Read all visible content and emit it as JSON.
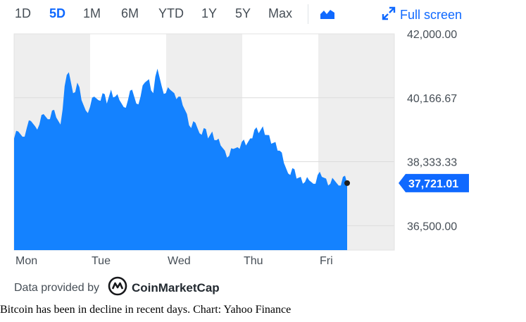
{
  "toolbar": {
    "ranges": [
      "1D",
      "5D",
      "1M",
      "6M",
      "YTD",
      "1Y",
      "5Y",
      "Max"
    ],
    "active_range": "5D",
    "chart_type_icon": "area-chart-icon",
    "fullscreen_icon": "expand-arrows-icon",
    "fullscreen_label": "Full screen",
    "accent_color": "#0f69ff"
  },
  "chart_data": {
    "type": "area",
    "title": "",
    "xlabel": "",
    "ylabel": "",
    "x_ticks": [
      "Mon",
      "Tue",
      "Wed",
      "Thu",
      "Fri"
    ],
    "y_ticks": [
      "42,000.00",
      "40,166.67",
      "38,333.33",
      "36,500.00"
    ],
    "ylim": [
      35800,
      42000
    ],
    "grid": true,
    "fill_color": "#1482ff",
    "last_price": 37721.01,
    "last_price_label": "37,721.01",
    "series": [
      {
        "values": [
          39000,
          39200,
          39050,
          39300,
          39500,
          39350,
          39400,
          39700,
          39550,
          39800,
          39600,
          39400,
          40500,
          40900,
          40300,
          40600,
          40100,
          39800,
          39900,
          40200,
          40100,
          40300,
          40000,
          40400,
          40200,
          40100,
          39900,
          40100,
          40400,
          40000,
          40200,
          40600,
          40700,
          40300,
          41000,
          40500,
          40300,
          40400,
          40300,
          40200,
          39950,
          39700,
          39300,
          39450,
          39150,
          39300,
          39000,
          39200,
          38950,
          38800,
          38650,
          38500,
          38700,
          38750,
          38900,
          38800,
          39000,
          39250,
          39150,
          39350,
          39100,
          38850,
          38900,
          38650,
          38300,
          38000,
          38150,
          37850,
          37900,
          37750,
          37800,
          37700,
          37950,
          37900,
          37850,
          37700,
          37800,
          37650,
          37900,
          37721
        ]
      }
    ]
  },
  "footer": {
    "provided_by": "Data provided by",
    "provider_icon": "coinmarketcap-logo-icon",
    "provider_name": "CoinMarketCap"
  },
  "caption": "Bitcoin has been in decline in recent days. Chart: Yahoo Finance"
}
